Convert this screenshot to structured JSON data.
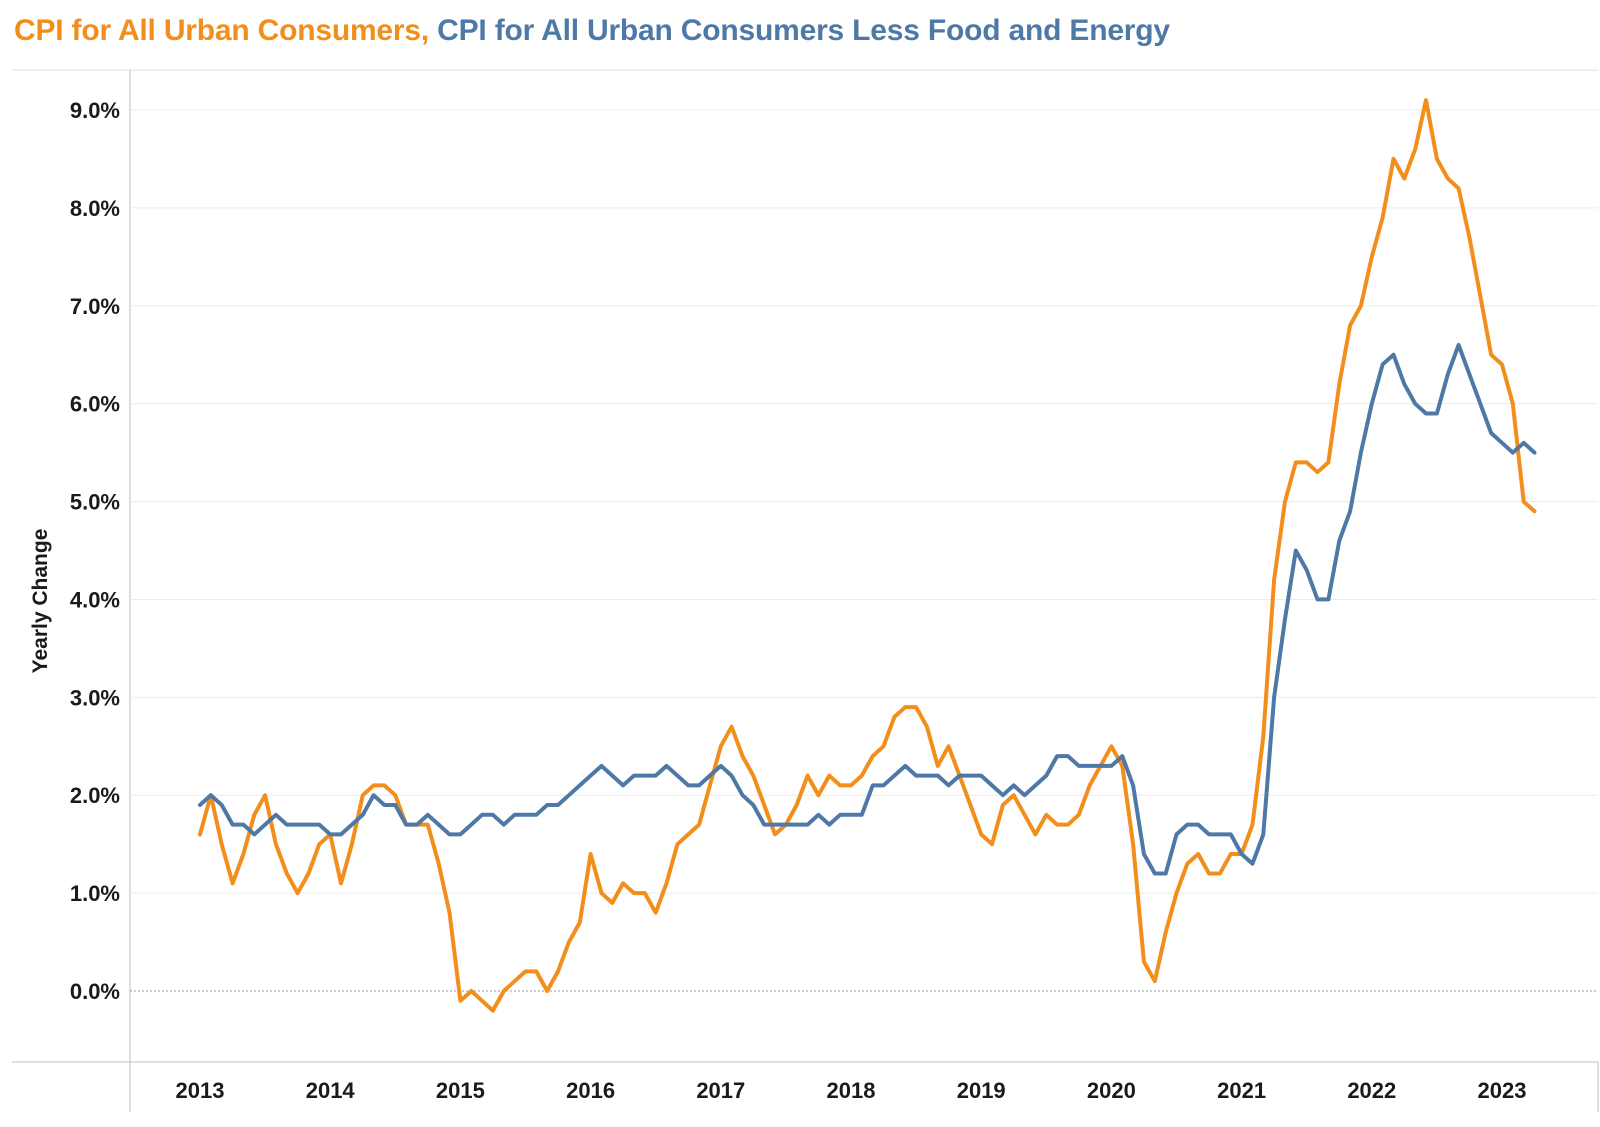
{
  "title": {
    "part1": "CPI for All Urban Consumers,",
    "part2": "CPI for All Urban Consumers Less Food and Energy"
  },
  "colors": {
    "all_items": "#f28e1c",
    "core": "#4e79a7",
    "gridline": "#ececec",
    "zero_line": "#999999",
    "axis": "#bdbdbd"
  },
  "chart_data": {
    "type": "line",
    "ylabel": "Yearly Change",
    "xlabel": "",
    "ylim": [
      -0.7,
      9.5
    ],
    "yticks": [
      0,
      1,
      2,
      3,
      4,
      5,
      6,
      7,
      8,
      9
    ],
    "ytick_labels": [
      "0.0%",
      "1.0%",
      "2.0%",
      "3.0%",
      "4.0%",
      "5.0%",
      "6.0%",
      "7.0%",
      "8.0%",
      "9.0%"
    ],
    "xticks": [
      "2013",
      "2014",
      "2015",
      "2016",
      "2017",
      "2018",
      "2019",
      "2020",
      "2021",
      "2022",
      "2023"
    ],
    "grid": true,
    "legend": "title",
    "x_start": "2013-01",
    "x_end": "2023-04",
    "x_frequency": "monthly",
    "series": [
      {
        "name": "CPI for All Urban Consumers",
        "color": "#f28e1c",
        "values": [
          1.6,
          2.0,
          1.5,
          1.1,
          1.4,
          1.8,
          2.0,
          1.5,
          1.2,
          1.0,
          1.2,
          1.5,
          1.6,
          1.1,
          1.5,
          2.0,
          2.1,
          2.1,
          2.0,
          1.7,
          1.7,
          1.7,
          1.3,
          0.8,
          -0.1,
          0.0,
          -0.1,
          -0.2,
          0.0,
          0.1,
          0.2,
          0.2,
          0.0,
          0.2,
          0.5,
          0.7,
          1.4,
          1.0,
          0.9,
          1.1,
          1.0,
          1.0,
          0.8,
          1.1,
          1.5,
          1.6,
          1.7,
          2.1,
          2.5,
          2.7,
          2.4,
          2.2,
          1.9,
          1.6,
          1.7,
          1.9,
          2.2,
          2.0,
          2.2,
          2.1,
          2.1,
          2.2,
          2.4,
          2.5,
          2.8,
          2.9,
          2.9,
          2.7,
          2.3,
          2.5,
          2.2,
          1.9,
          1.6,
          1.5,
          1.9,
          2.0,
          1.8,
          1.6,
          1.8,
          1.7,
          1.7,
          1.8,
          2.1,
          2.3,
          2.5,
          2.3,
          1.5,
          0.3,
          0.1,
          0.6,
          1.0,
          1.3,
          1.4,
          1.2,
          1.2,
          1.4,
          1.4,
          1.7,
          2.6,
          4.2,
          5.0,
          5.4,
          5.4,
          5.3,
          5.4,
          6.2,
          6.8,
          7.0,
          7.5,
          7.9,
          8.5,
          8.3,
          8.6,
          9.1,
          8.5,
          8.3,
          8.2,
          7.7,
          7.1,
          6.5,
          6.4,
          6.0,
          5.0,
          4.9
        ]
      },
      {
        "name": "CPI for All Urban Consumers Less Food and Energy",
        "color": "#4e79a7",
        "values": [
          1.9,
          2.0,
          1.9,
          1.7,
          1.7,
          1.6,
          1.7,
          1.8,
          1.7,
          1.7,
          1.7,
          1.7,
          1.6,
          1.6,
          1.7,
          1.8,
          2.0,
          1.9,
          1.9,
          1.7,
          1.7,
          1.8,
          1.7,
          1.6,
          1.6,
          1.7,
          1.8,
          1.8,
          1.7,
          1.8,
          1.8,
          1.8,
          1.9,
          1.9,
          2.0,
          2.1,
          2.2,
          2.3,
          2.2,
          2.1,
          2.2,
          2.2,
          2.2,
          2.3,
          2.2,
          2.1,
          2.1,
          2.2,
          2.3,
          2.2,
          2.0,
          1.9,
          1.7,
          1.7,
          1.7,
          1.7,
          1.7,
          1.8,
          1.7,
          1.8,
          1.8,
          1.8,
          2.1,
          2.1,
          2.2,
          2.3,
          2.2,
          2.2,
          2.2,
          2.1,
          2.2,
          2.2,
          2.2,
          2.1,
          2.0,
          2.1,
          2.0,
          2.1,
          2.2,
          2.4,
          2.4,
          2.3,
          2.3,
          2.3,
          2.3,
          2.4,
          2.1,
          1.4,
          1.2,
          1.2,
          1.6,
          1.7,
          1.7,
          1.6,
          1.6,
          1.6,
          1.4,
          1.3,
          1.6,
          3.0,
          3.8,
          4.5,
          4.3,
          4.0,
          4.0,
          4.6,
          4.9,
          5.5,
          6.0,
          6.4,
          6.5,
          6.2,
          6.0,
          5.9,
          5.9,
          6.3,
          6.6,
          6.3,
          6.0,
          5.7,
          5.6,
          5.5,
          5.6,
          5.5
        ]
      }
    ]
  }
}
